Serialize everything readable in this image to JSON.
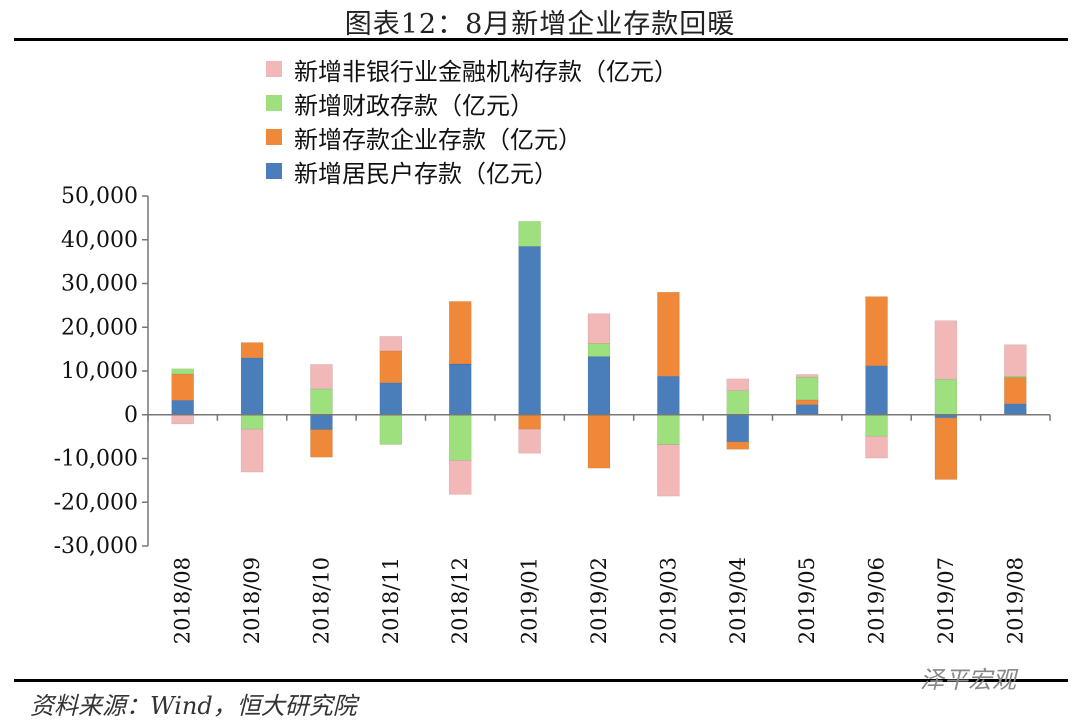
{
  "header": {
    "title": "图表12：8月新增企业存款回暖"
  },
  "footer": {
    "source": "资料来源：Wind，恒大研究院",
    "watermark": "泽平宏观"
  },
  "chart_data": {
    "type": "bar",
    "stacked": true,
    "title": "图表12：8月新增企业存款回暖",
    "xlabel": "",
    "ylabel": "",
    "ylim": [
      -30000,
      50000
    ],
    "yticks": [
      50000,
      40000,
      30000,
      20000,
      10000,
      0,
      -10000,
      -20000,
      -30000
    ],
    "ytick_labels": [
      "50,000",
      "40,000",
      "30,000",
      "20,000",
      "10,000",
      "0",
      "-10,000",
      "-20,000",
      "-30,000"
    ],
    "categories": [
      "2018/08",
      "2018/09",
      "2018/10",
      "2018/11",
      "2018/12",
      "2019/01",
      "2019/02",
      "2019/03",
      "2019/04",
      "2019/05",
      "2019/06",
      "2019/07",
      "2019/08"
    ],
    "legend_order": [
      3,
      2,
      1,
      0
    ],
    "series": [
      {
        "name": "新增居民户存款（亿元）",
        "color": "#4a7ebb",
        "values": [
          3300,
          13000,
          -3400,
          7300,
          11600,
          38500,
          13300,
          8800,
          -6200,
          2300,
          11200,
          -700,
          2500
        ]
      },
      {
        "name": "新增存款企业存款（亿元）",
        "color": "#f0883a",
        "values": [
          6000,
          3500,
          -6300,
          7300,
          14300,
          -3300,
          -12200,
          19200,
          -1700,
          1100,
          15800,
          -14100,
          6000
        ]
      },
      {
        "name": "新增财政存款（亿元）",
        "color": "#9ee07e",
        "values": [
          1200,
          -3300,
          5900,
          -6800,
          -10400,
          5700,
          3000,
          -6800,
          5500,
          5200,
          -4900,
          8100,
          300
        ]
      },
      {
        "name": "新增非银行业金融机构存款（亿元）",
        "color": "#f1b8b7",
        "values": [
          -2100,
          -9800,
          5600,
          3300,
          -7800,
          -5500,
          6800,
          -11800,
          2700,
          600,
          -5000,
          13400,
          7200
        ]
      }
    ]
  }
}
